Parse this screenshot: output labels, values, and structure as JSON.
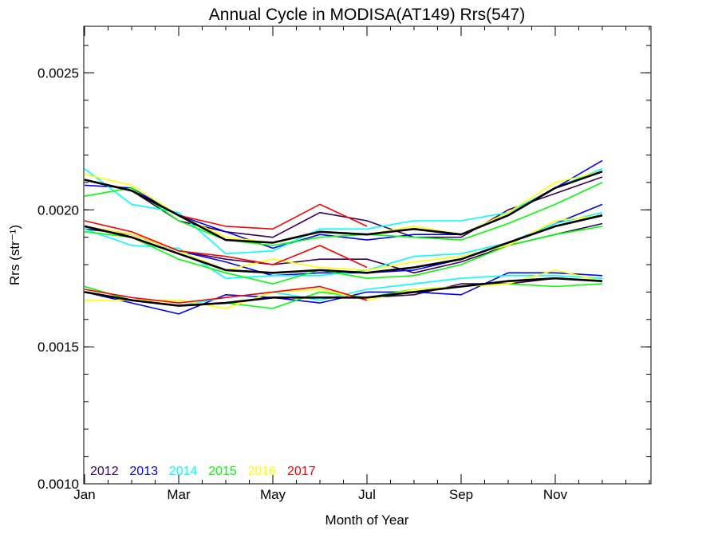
{
  "chart_data": {
    "type": "line",
    "title": "Annual Cycle in MODISA(AT149) Rrs(547)",
    "xlabel": "Month of Year",
    "ylabel": "Rrs (str⁻¹)",
    "xlim": [
      0,
      12
    ],
    "ylim": [
      0.001,
      0.00267
    ],
    "x_ticks": [
      {
        "value": 0,
        "label": "Jan"
      },
      {
        "value": 2,
        "label": "Mar"
      },
      {
        "value": 4,
        "label": "May"
      },
      {
        "value": 6,
        "label": "Jul"
      },
      {
        "value": 8,
        "label": "Sep"
      },
      {
        "value": 10,
        "label": "Nov"
      }
    ],
    "y_ticks": [
      {
        "value": 0.001,
        "label": "0.0010"
      },
      {
        "value": 0.0015,
        "label": "0.0015"
      },
      {
        "value": 0.002,
        "label": "0.0020"
      },
      {
        "value": 0.0025,
        "label": "0.0025"
      }
    ],
    "x_minor_step": 0.5,
    "y_minor_step": 0.0001,
    "grid": false,
    "legend": {
      "placement": "bottom-left",
      "entries": [
        {
          "label": "2012",
          "color": "#3b0056"
        },
        {
          "label": "2013",
          "color": "#0000ff"
        },
        {
          "label": "2014",
          "color": "#00ffff"
        },
        {
          "label": "2015",
          "color": "#00ff00"
        },
        {
          "label": "2016",
          "color": "#ffff00"
        },
        {
          "label": "2017",
          "color": "#ff0000"
        }
      ]
    },
    "x": [
      0,
      1,
      2,
      3,
      4,
      5,
      6,
      7,
      8,
      9,
      10,
      11
    ],
    "series": [
      {
        "group": "upper",
        "color": "#3b0056",
        "values": [
          0.00211,
          0.00207,
          0.00196,
          0.00192,
          0.0019,
          0.00199,
          0.00196,
          0.0019,
          0.0019,
          0.002,
          0.00206,
          0.00212
        ]
      },
      {
        "group": "upper",
        "color": "#0000ff",
        "values": [
          0.00209,
          0.00208,
          0.00198,
          0.00192,
          0.00186,
          0.00191,
          0.00189,
          0.00191,
          0.00191,
          0.00199,
          0.00208,
          0.00218
        ]
      },
      {
        "group": "upper",
        "color": "#00ffff",
        "values": [
          0.00215,
          0.00202,
          0.00199,
          0.00184,
          0.00185,
          0.00193,
          0.00193,
          0.00196,
          0.00196,
          0.00199,
          0.00208,
          0.00215
        ]
      },
      {
        "group": "upper",
        "color": "#00ff00",
        "values": [
          0.00205,
          0.00208,
          0.00196,
          0.00189,
          0.00187,
          0.0019,
          0.00191,
          0.0019,
          0.00189,
          0.00195,
          0.00202,
          0.0021
        ]
      },
      {
        "group": "upper",
        "color": "#ffff00",
        "values": [
          0.00213,
          0.00209,
          0.00198,
          0.0019,
          0.00188,
          0.00192,
          0.00191,
          0.00194,
          0.00191,
          0.00199,
          0.0021,
          0.00214
        ]
      },
      {
        "group": "upper",
        "color": "#ff0000",
        "values": [
          0.00211,
          0.00207,
          0.00198,
          0.00194,
          0.00193,
          0.00202,
          0.00194,
          null,
          null,
          null,
          null,
          null
        ]
      },
      {
        "group": "upper",
        "color": "#000000",
        "mean": true,
        "values": [
          0.00211,
          0.00207,
          0.00198,
          0.00189,
          0.00188,
          0.00192,
          0.00191,
          0.00193,
          0.00191,
          0.00198,
          0.00208,
          0.00214
        ]
      },
      {
        "group": "middle",
        "color": "#3b0056",
        "values": [
          0.00193,
          0.00191,
          0.00185,
          0.00182,
          0.0018,
          0.00182,
          0.00182,
          0.00177,
          0.00181,
          0.00187,
          0.00191,
          0.00195
        ]
      },
      {
        "group": "middle",
        "color": "#0000ff",
        "values": [
          0.00194,
          0.00191,
          0.00185,
          0.00181,
          0.00176,
          0.00177,
          0.00177,
          0.00178,
          0.00182,
          0.00188,
          0.00195,
          0.00202
        ]
      },
      {
        "group": "middle",
        "color": "#00ffff",
        "values": [
          0.00193,
          0.00187,
          0.00186,
          0.00175,
          0.00176,
          0.00176,
          0.00178,
          0.00183,
          0.00184,
          0.00188,
          0.00195,
          0.00199
        ]
      },
      {
        "group": "middle",
        "color": "#00ff00",
        "values": [
          0.00192,
          0.0019,
          0.00182,
          0.00177,
          0.00173,
          0.00178,
          0.00175,
          0.00176,
          0.0018,
          0.00187,
          0.00191,
          0.00194
        ]
      },
      {
        "group": "middle",
        "color": "#ffff00",
        "values": [
          0.00194,
          0.00191,
          0.00185,
          0.00178,
          0.00182,
          0.00179,
          0.00178,
          0.00181,
          0.00183,
          0.00187,
          0.00196,
          0.00198
        ]
      },
      {
        "group": "middle",
        "color": "#ff0000",
        "values": [
          0.00196,
          0.00192,
          0.00185,
          0.00183,
          0.0018,
          0.00187,
          0.00179,
          null,
          null,
          null,
          null,
          null
        ]
      },
      {
        "group": "middle",
        "color": "#000000",
        "mean": true,
        "values": [
          0.00194,
          0.0019,
          0.00184,
          0.00178,
          0.00177,
          0.00178,
          0.00177,
          0.00179,
          0.00182,
          0.00188,
          0.00194,
          0.00198
        ]
      },
      {
        "group": "lower",
        "color": "#3b0056",
        "values": [
          0.0017,
          0.00167,
          0.00165,
          0.00166,
          0.00168,
          0.00168,
          0.00168,
          0.00169,
          0.00173,
          0.00173,
          0.00175,
          0.00174
        ]
      },
      {
        "group": "lower",
        "color": "#0000ff",
        "values": [
          0.0017,
          0.00166,
          0.00162,
          0.00169,
          0.00168,
          0.00166,
          0.0017,
          0.0017,
          0.00169,
          0.00177,
          0.00177,
          0.00176
        ]
      },
      {
        "group": "lower",
        "color": "#00ffff",
        "values": [
          0.00172,
          0.00167,
          0.00165,
          0.00168,
          0.0017,
          0.00167,
          0.00171,
          0.00173,
          0.00175,
          0.00176,
          0.00176,
          0.00175
        ]
      },
      {
        "group": "lower",
        "color": "#00ff00",
        "values": [
          0.00172,
          0.00167,
          0.00165,
          0.00166,
          0.00164,
          0.0017,
          0.00168,
          0.00171,
          0.00172,
          0.00173,
          0.00172,
          0.00173
        ]
      },
      {
        "group": "lower",
        "color": "#ffff00",
        "values": [
          0.00167,
          0.00167,
          0.00167,
          0.00164,
          0.0017,
          0.00171,
          0.00167,
          0.00171,
          0.00172,
          0.00173,
          0.00178,
          0.00174
        ]
      },
      {
        "group": "lower",
        "color": "#ff0000",
        "values": [
          0.00171,
          0.00168,
          0.00166,
          0.00168,
          0.0017,
          0.00172,
          0.00167,
          null,
          null,
          null,
          null,
          null
        ]
      },
      {
        "group": "lower",
        "color": "#000000",
        "mean": true,
        "values": [
          0.0017,
          0.00167,
          0.00165,
          0.00166,
          0.00168,
          0.00168,
          0.00168,
          0.0017,
          0.00172,
          0.00174,
          0.00175,
          0.00174
        ]
      }
    ]
  }
}
